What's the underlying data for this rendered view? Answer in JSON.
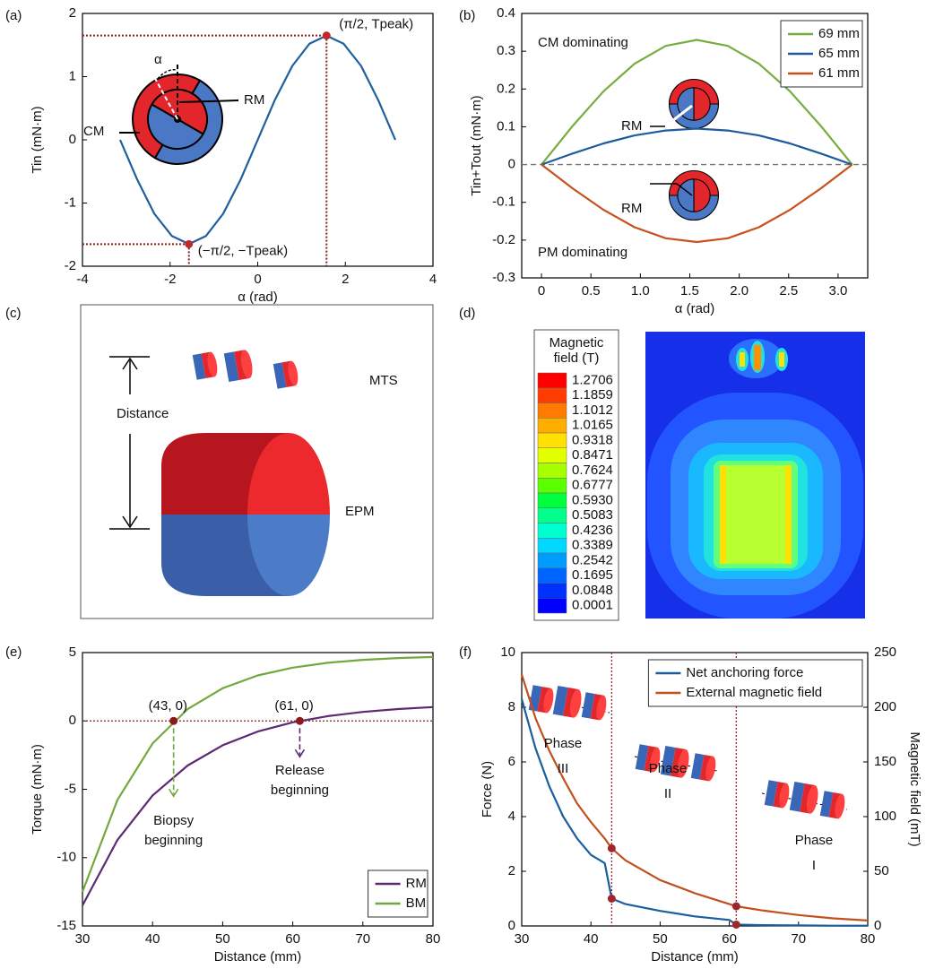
{
  "chart_data": [
    {
      "type": "line",
      "panel_label": "(a)",
      "xlabel": "α (rad)",
      "ylabel": "Tin (mN·m)",
      "xlim": [
        -4,
        4
      ],
      "xticks": [
        -4,
        -2,
        0,
        2,
        4
      ],
      "ylim": [
        -2,
        2
      ],
      "yticks": [
        -2,
        -1,
        0,
        1,
        2
      ],
      "x": [
        -3.14,
        -2.75,
        -2.36,
        -1.96,
        -1.57,
        -1.18,
        -0.79,
        -0.39,
        0,
        0.39,
        0.79,
        1.18,
        1.57,
        1.96,
        2.36,
        2.75,
        3.14
      ],
      "series": [
        {
          "color": "#1f5f9e",
          "values": [
            0,
            -0.63,
            -1.17,
            -1.52,
            -1.65,
            -1.52,
            -1.17,
            -0.63,
            0,
            0.63,
            1.17,
            1.52,
            1.65,
            1.52,
            1.17,
            0.63,
            0
          ]
        }
      ],
      "points": [
        {
          "x": 1.5708,
          "y": 1.65,
          "label": "(π/2, Tpeak)"
        },
        {
          "x": -1.5708,
          "y": -1.65,
          "label": "(−π/2, −Tpeak)"
        }
      ],
      "point_color": "#c0282d",
      "annotations": [
        "α",
        "RM",
        "CM"
      ]
    },
    {
      "type": "line",
      "panel_label": "(b)",
      "xlabel": "α (rad)",
      "ylabel": "Tin+Tout (mN·m)",
      "xlim": [
        -0.2,
        3.3
      ],
      "xticks": [
        0,
        0.5,
        {
          "value": 1,
          "label": "1.0"
        },
        1.5,
        {
          "value": 2,
          "label": "2.0"
        },
        2.5,
        {
          "value": 3,
          "label": "3.0"
        }
      ],
      "ylim": [
        -0.3,
        0.4
      ],
      "yticks": [
        -0.3,
        -0.2,
        -0.1,
        0,
        0.1,
        0.2,
        0.3,
        0.4
      ],
      "x": [
        0,
        0.314,
        0.628,
        0.942,
        1.257,
        1.571,
        1.885,
        2.199,
        2.513,
        2.827,
        3.142
      ],
      "series": [
        {
          "name": "69 mm",
          "color": "#77ac3f",
          "values": [
            0,
            0.102,
            0.194,
            0.267,
            0.314,
            0.33,
            0.314,
            0.267,
            0.194,
            0.102,
            0
          ]
        },
        {
          "name": "65 mm",
          "color": "#1d5c9c",
          "values": [
            0,
            0.029,
            0.056,
            0.077,
            0.09,
            0.095,
            0.09,
            0.077,
            0.056,
            0.029,
            0
          ]
        },
        {
          "name": "61 mm",
          "color": "#c8501e",
          "values": [
            0,
            -0.063,
            -0.12,
            -0.166,
            -0.195,
            -0.205,
            -0.195,
            -0.166,
            -0.12,
            -0.063,
            0
          ]
        }
      ],
      "legend": "upper right",
      "hline": 0,
      "hline_color": "#777",
      "annotations": [
        "CM dominating",
        "PM dominating",
        "RM",
        "RM"
      ]
    },
    {
      "type": "diagram",
      "panel_label": "(c)",
      "labels": [
        "Distance",
        "MTS",
        "EPM"
      ]
    },
    {
      "type": "colormap",
      "panel_label": "(d)",
      "title": [
        "Magnetic",
        "field (T)"
      ],
      "levels": [
        "1.2706",
        "1.1859",
        "1.1012",
        "1.0165",
        "0.9318",
        "0.8471",
        "0.7624",
        "0.6777",
        "0.5930",
        "0.5083",
        "0.4236",
        "0.3389",
        "0.2542",
        "0.1695",
        "0.0848",
        "0.0001"
      ],
      "colors": [
        "#ff0000",
        "#ff3c00",
        "#ff7a00",
        "#ffae00",
        "#ffe000",
        "#e4ff00",
        "#a8ff00",
        "#5cff00",
        "#00ff3c",
        "#00ff8c",
        "#00ffd0",
        "#00d8ff",
        "#009cff",
        "#0064ff",
        "#0032ff",
        "#0000ff"
      ]
    },
    {
      "type": "line",
      "panel_label": "(e)",
      "xlabel": "Distance (mm)",
      "ylabel": "Torque (mN·m)",
      "xlim": [
        30,
        80
      ],
      "xticks": [
        30,
        40,
        50,
        60,
        70,
        80
      ],
      "ylim": [
        -15,
        5
      ],
      "yticks": [
        -15,
        -10,
        -5,
        0,
        5
      ],
      "x": [
        30,
        35,
        40,
        45,
        50,
        55,
        60,
        65,
        70,
        75,
        80
      ],
      "series": [
        {
          "name": "RM",
          "color": "#5b2a72",
          "values": [
            -13.5,
            -8.7,
            -5.45,
            -3.26,
            -1.78,
            -0.78,
            -0.1,
            0.35,
            0.66,
            0.87,
            1.01
          ]
        },
        {
          "name": "BM",
          "color": "#72a83e",
          "values": [
            -12.5,
            -5.77,
            -1.65,
            0.86,
            2.39,
            3.33,
            3.9,
            4.25,
            4.47,
            4.6,
            4.68
          ]
        }
      ],
      "legend": "lower right",
      "hline": 0,
      "hline_color": "#8b1a1a",
      "points": [
        {
          "x": 43,
          "y": 0,
          "label": "(43, 0)",
          "color": "#72a83e",
          "note": [
            "Biopsy",
            "beginning"
          ]
        },
        {
          "x": 61,
          "y": 0,
          "label": "(61, 0)",
          "color": "#5b2a72",
          "note": [
            "Release",
            "beginning"
          ]
        }
      ],
      "point_color": "#8b1a1a"
    },
    {
      "type": "line",
      "panel_label": "(f)",
      "xlabel": "Distance (mm)",
      "ylabel": "Force (N)",
      "y2label": "Magnetic field (mT)",
      "xlim": [
        30,
        80
      ],
      "xticks": [
        30,
        40,
        50,
        60,
        70,
        80
      ],
      "ylim": [
        0,
        10
      ],
      "yticks": [
        0,
        2,
        4,
        6,
        8,
        10
      ],
      "y2lim": [
        0,
        250
      ],
      "y2ticks": [
        0,
        50,
        100,
        150,
        200,
        250
      ],
      "x": [
        30,
        32,
        34,
        36,
        38,
        40,
        42,
        43,
        45,
        50,
        55,
        60,
        61,
        65,
        70,
        75,
        80
      ],
      "series": [
        {
          "name": "Net anchoring force",
          "color": "#1b5e9e",
          "values": [
            8.3,
            6.5,
            5.1,
            4.0,
            3.2,
            2.6,
            2.3,
            1.0,
            0.8,
            0.55,
            0.35,
            0.22,
            0.05,
            0.03,
            0.02,
            0.01,
            0.01
          ]
        },
        {
          "name": "External magnetic field",
          "color": "#c0501e",
          "axis": "y2",
          "values": [
            230,
            190,
            160,
            135,
            112,
            95,
            80,
            71,
            60,
            42,
            30,
            20,
            18,
            14,
            10,
            7,
            5
          ]
        }
      ],
      "legend": "upper right",
      "highlight_x": [
        43,
        61
      ],
      "point_color": "#a0262b",
      "annotations": [
        [
          "Phase",
          "III"
        ],
        [
          "Phase",
          "II"
        ],
        [
          "Phase",
          "I"
        ]
      ]
    }
  ]
}
